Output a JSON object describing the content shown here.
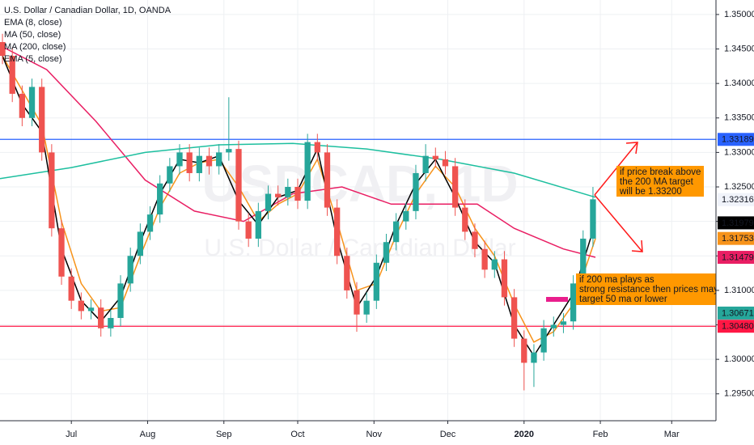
{
  "chart_data": {
    "type": "candlestick",
    "title": "U.S. Dollar / Canadian Dollar, 1D, OANDA",
    "watermark": {
      "title": "USDCAD, 1D",
      "subtitle": "U.S. Dollar / Canadian Dollar"
    },
    "up_color": "#26a69a",
    "down_color": "#ef5350",
    "grid": true,
    "xlim": [
      -29,
      262
    ],
    "ylim": [
      1.2911,
      1.3521
    ],
    "xticks": [
      {
        "value": 0,
        "label": "Jul"
      },
      {
        "value": 31,
        "label": "Aug"
      },
      {
        "value": 62,
        "label": "Sep"
      },
      {
        "value": 92,
        "label": "Oct"
      },
      {
        "value": 123,
        "label": "Nov"
      },
      {
        "value": 153,
        "label": "Dec"
      },
      {
        "value": 184,
        "label": "2020"
      },
      {
        "value": 215,
        "label": "Feb"
      },
      {
        "value": 244,
        "label": "Mar"
      }
    ],
    "yticks": [
      {
        "value": 1.295,
        "label": "1.29500"
      },
      {
        "value": 1.3,
        "label": "1.30000"
      },
      {
        "value": 1.305,
        "label": "1.30500"
      },
      {
        "value": 1.31,
        "label": "1.31000"
      },
      {
        "value": 1.315,
        "label": "1.31500"
      },
      {
        "value": 1.32,
        "label": "1.32000"
      },
      {
        "value": 1.325,
        "label": "1.32500"
      },
      {
        "value": 1.33,
        "label": "1.33000"
      },
      {
        "value": 1.335,
        "label": "1.33500"
      },
      {
        "value": 1.34,
        "label": "1.34000"
      },
      {
        "value": 1.345,
        "label": "1.34500"
      },
      {
        "value": 1.35,
        "label": "1.35000"
      }
    ],
    "x": [
      -28,
      -24,
      -20,
      -16,
      -12,
      -8,
      -4,
      0,
      4,
      8,
      12,
      16,
      20,
      24,
      28,
      32,
      36,
      40,
      44,
      48,
      52,
      56,
      60,
      64,
      68,
      72,
      76,
      80,
      84,
      88,
      92,
      96,
      100,
      104,
      108,
      112,
      116,
      120,
      124,
      128,
      132,
      136,
      140,
      144,
      148,
      152,
      156,
      160,
      164,
      168,
      172,
      176,
      180,
      184,
      188,
      192,
      196,
      200,
      204,
      208,
      212
    ],
    "open": [
      1.346,
      1.344,
      1.3385,
      1.335,
      1.3395,
      1.33,
      1.319,
      1.312,
      1.3085,
      1.307,
      1.3075,
      1.3045,
      1.306,
      1.311,
      1.315,
      1.3185,
      1.321,
      1.3255,
      1.328,
      1.33,
      1.327,
      1.3295,
      1.328,
      1.33,
      1.3305,
      1.32,
      1.3175,
      1.3215,
      1.324,
      1.3235,
      1.325,
      1.323,
      1.3315,
      1.33,
      1.322,
      1.315,
      1.31,
      1.3065,
      1.3085,
      1.314,
      1.317,
      1.32,
      1.3215,
      1.327,
      1.3295,
      1.329,
      1.328,
      1.322,
      1.3185,
      1.316,
      1.313,
      1.3145,
      1.309,
      1.303,
      1.2995,
      1.301,
      1.3045,
      1.305,
      1.3055,
      1.311,
      1.3175
    ],
    "high": [
      1.3472,
      1.3452,
      1.3397,
      1.3407,
      1.3407,
      1.3312,
      1.3202,
      1.3132,
      1.3097,
      1.3087,
      1.3087,
      1.3072,
      1.3122,
      1.3162,
      1.3197,
      1.3222,
      1.3267,
      1.3292,
      1.3312,
      1.3312,
      1.3307,
      1.3307,
      1.3312,
      1.338,
      1.3317,
      1.3212,
      1.3227,
      1.3252,
      1.3252,
      1.3262,
      1.3262,
      1.3327,
      1.3327,
      1.3312,
      1.3232,
      1.3162,
      1.3112,
      1.3097,
      1.3152,
      1.3182,
      1.3212,
      1.3227,
      1.3282,
      1.3312,
      1.3307,
      1.3302,
      1.3292,
      1.3232,
      1.3197,
      1.3172,
      1.3157,
      1.3157,
      1.3102,
      1.3042,
      1.3022,
      1.3057,
      1.3062,
      1.3067,
      1.3122,
      1.3187,
      1.325
    ],
    "low": [
      1.3428,
      1.3373,
      1.3338,
      1.3338,
      1.3288,
      1.3178,
      1.3108,
      1.3073,
      1.3058,
      1.3058,
      1.3033,
      1.3033,
      1.3048,
      1.3098,
      1.3138,
      1.3173,
      1.3198,
      1.3243,
      1.3268,
      1.3258,
      1.3258,
      1.3268,
      1.3268,
      1.3288,
      1.3188,
      1.3163,
      1.3163,
      1.3203,
      1.3223,
      1.3223,
      1.3218,
      1.3218,
      1.3288,
      1.3208,
      1.3138,
      1.3088,
      1.304,
      1.3053,
      1.3073,
      1.3128,
      1.3158,
      1.3188,
      1.3203,
      1.3258,
      1.3278,
      1.3268,
      1.3208,
      1.3173,
      1.3148,
      1.3118,
      1.3118,
      1.3078,
      1.3018,
      1.2955,
      1.296,
      1.2998,
      1.3033,
      1.3038,
      1.3043,
      1.3098,
      1.3163
    ],
    "close": [
      1.344,
      1.3385,
      1.335,
      1.3395,
      1.33,
      1.319,
      1.312,
      1.3085,
      1.307,
      1.3075,
      1.3045,
      1.306,
      1.311,
      1.315,
      1.3185,
      1.321,
      1.3255,
      1.328,
      1.33,
      1.327,
      1.3295,
      1.328,
      1.33,
      1.3305,
      1.32,
      1.3175,
      1.3215,
      1.324,
      1.3235,
      1.325,
      1.323,
      1.3315,
      1.33,
      1.322,
      1.315,
      1.31,
      1.3065,
      1.3085,
      1.314,
      1.317,
      1.32,
      1.3215,
      1.327,
      1.3295,
      1.329,
      1.328,
      1.322,
      1.3185,
      1.316,
      1.313,
      1.3145,
      1.309,
      1.303,
      1.2995,
      1.301,
      1.3045,
      1.305,
      1.3055,
      1.311,
      1.3175,
      1.3232
    ],
    "series": [
      {
        "name": "EMA (8, close)",
        "color": "#f7931a",
        "x": [
          -28,
          -20,
          -12,
          -4,
          4,
          12,
          20,
          28,
          36,
          44,
          52,
          60,
          68,
          76,
          84,
          92,
          100,
          108,
          116,
          124,
          132,
          140,
          148,
          156,
          164,
          172,
          180,
          188,
          196,
          204,
          213
        ],
        "values": [
          1.344,
          1.339,
          1.334,
          1.32,
          1.311,
          1.307,
          1.3075,
          1.315,
          1.322,
          1.327,
          1.3285,
          1.329,
          1.325,
          1.32,
          1.3225,
          1.324,
          1.329,
          1.32,
          1.31,
          1.311,
          1.318,
          1.324,
          1.328,
          1.325,
          1.319,
          1.315,
          1.308,
          1.3025,
          1.304,
          1.308,
          1.3175
        ]
      },
      {
        "name": "MA (50, close)",
        "color": "#e91e63",
        "x": [
          -29,
          -10,
          10,
          30,
          50,
          70,
          90,
          110,
          130,
          150,
          165,
          180,
          200,
          213
        ],
        "values": [
          1.3455,
          1.342,
          1.3345,
          1.326,
          1.3215,
          1.32,
          1.324,
          1.325,
          1.3225,
          1.3225,
          1.3225,
          1.319,
          1.316,
          1.3148
        ]
      },
      {
        "name": "MA (200, close)",
        "color": "#1dbf9f",
        "x": [
          -29,
          0,
          30,
          60,
          90,
          120,
          150,
          180,
          213
        ],
        "values": [
          1.3262,
          1.3278,
          1.33,
          1.3311,
          1.3313,
          1.3305,
          1.329,
          1.327,
          1.3235
        ]
      },
      {
        "name": "EMA (5, close)",
        "color": "#000000",
        "x": [
          -28,
          -20,
          -12,
          -4,
          4,
          12,
          20,
          28,
          36,
          44,
          52,
          60,
          68,
          76,
          84,
          92,
          100,
          108,
          116,
          124,
          132,
          140,
          148,
          156,
          164,
          172,
          180,
          188,
          196,
          204,
          213
        ],
        "values": [
          1.344,
          1.337,
          1.333,
          1.316,
          1.3085,
          1.3055,
          1.309,
          1.317,
          1.324,
          1.329,
          1.3285,
          1.3295,
          1.323,
          1.3195,
          1.3235,
          1.3245,
          1.3305,
          1.3175,
          1.3075,
          1.312,
          1.3195,
          1.3255,
          1.329,
          1.3235,
          1.317,
          1.314,
          1.305,
          1.3005,
          1.305,
          1.3095,
          1.3198
        ]
      }
    ],
    "price_labels": [
      {
        "value": 1.33189,
        "color": "#2962ff",
        "text_color": "#ffffff",
        "hline": true
      },
      {
        "value": 1.32316,
        "color": "#f0f3fa",
        "text_color": "#131722"
      },
      {
        "value": 1.31979,
        "color": "#000000",
        "text_color": "#ffffff"
      },
      {
        "value": 1.31753,
        "color": "#f7931a",
        "text_color": "#ffffff"
      },
      {
        "value": 1.31479,
        "color": "#e91e63",
        "text_color": "#ffffff"
      },
      {
        "value": 1.30671,
        "color": "#26a69a",
        "text_color": "#ffffff"
      },
      {
        "value": 1.3048,
        "label": "1.30480",
        "color": "#ff1744",
        "text_color": "#ffffff",
        "hline": true
      }
    ],
    "annotations": [
      {
        "lines": [
          "if price break above",
          "the 200 MA target",
          "will be 1.33200"
        ]
      },
      {
        "lines": [
          "if 200 ma plays as",
          "strong resistance then prices may",
          " target 50 ma or lower"
        ]
      }
    ]
  }
}
